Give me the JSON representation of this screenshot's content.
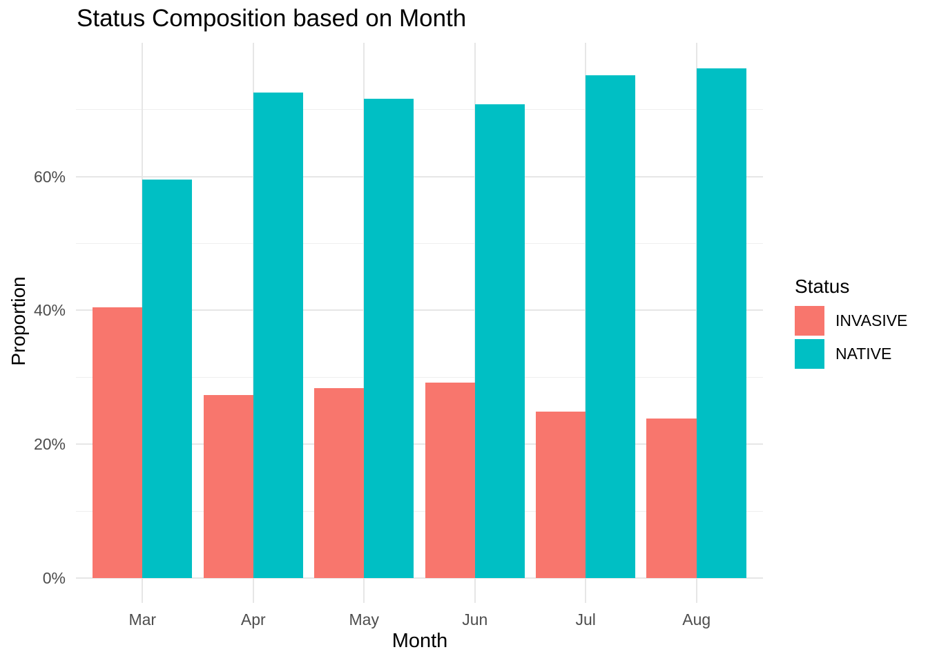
{
  "chart_data": {
    "type": "bar",
    "bar_grouping": "dodge",
    "title": "Status Composition based on Month",
    "xlabel": "Month",
    "ylabel": "Proportion",
    "categories": [
      "Mar",
      "Apr",
      "May",
      "Jun",
      "Jul",
      "Aug"
    ],
    "series": [
      {
        "name": "INVASIVE",
        "color": "#F8766D",
        "values": [
          40.5,
          27.4,
          28.4,
          29.2,
          24.9,
          23.8
        ]
      },
      {
        "name": "NATIVE",
        "color": "#00BFC4",
        "values": [
          59.5,
          72.6,
          71.6,
          70.8,
          75.1,
          76.2
        ]
      }
    ],
    "value_unit": "percent",
    "ylim": [
      0,
      80
    ],
    "y_ticks": [
      {
        "value": 0,
        "label": "0%"
      },
      {
        "value": 20,
        "label": "20%"
      },
      {
        "value": 40,
        "label": "40%"
      },
      {
        "value": 60,
        "label": "60%"
      }
    ],
    "y_minor_breaks": [
      10,
      30,
      50,
      70
    ],
    "grid": true,
    "legend_title": "Status",
    "legend_position": "right"
  },
  "colors": {
    "invasive": "#F8766D",
    "native": "#00BFC4",
    "grid_major": "#e6e6e6",
    "grid_minor": "#efefef",
    "tick_text": "#4d4d4d",
    "title_text": "#000000",
    "background": "#ffffff"
  }
}
